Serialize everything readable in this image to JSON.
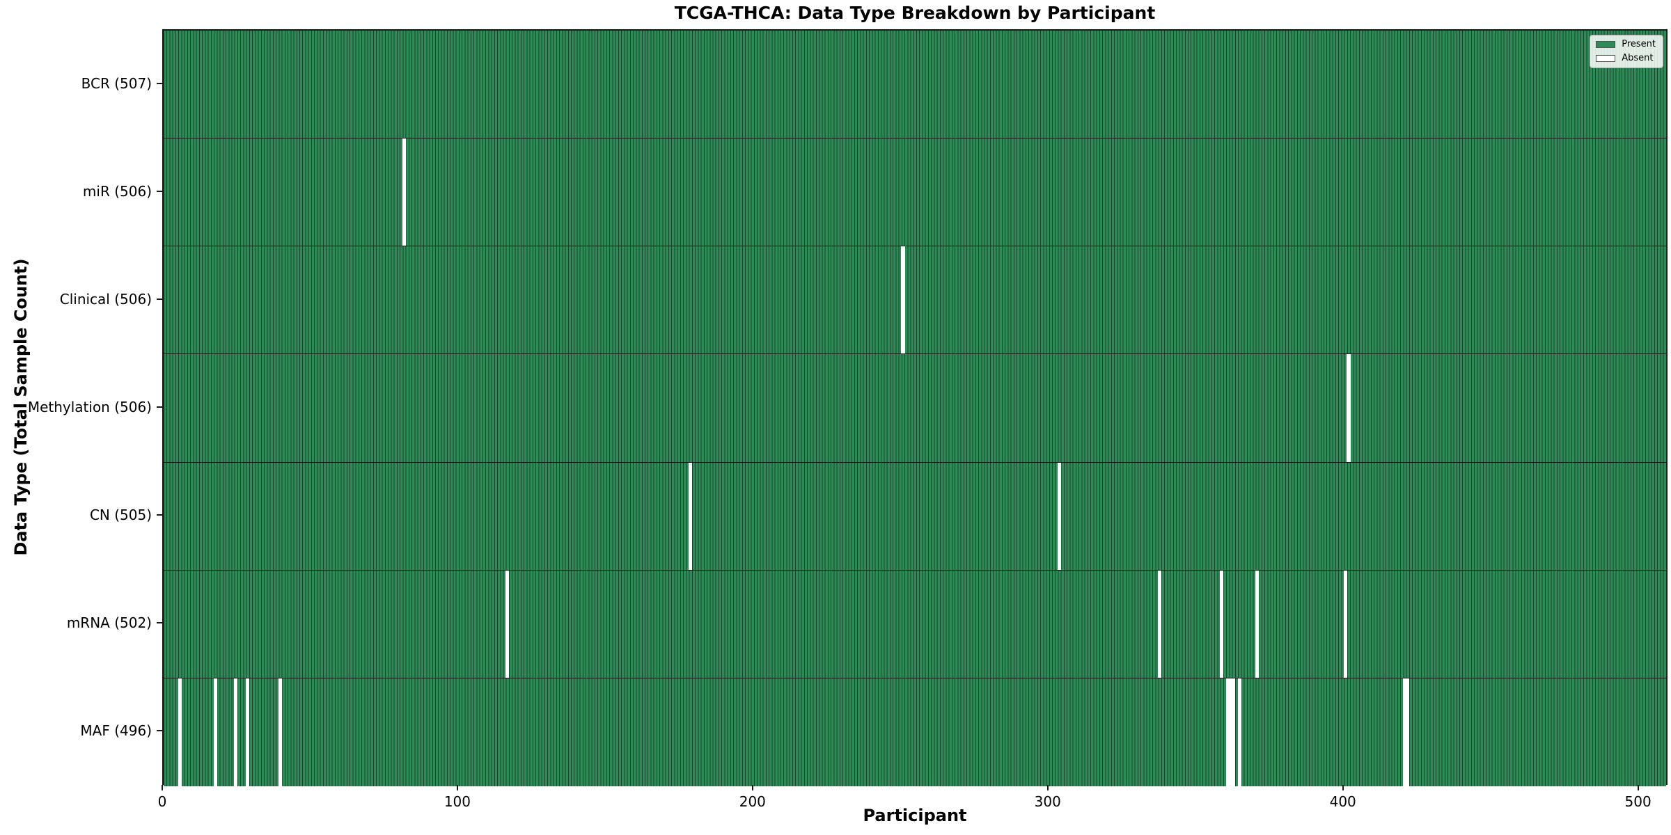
{
  "chart_data": {
    "type": "heatmap",
    "title": "TCGA-THCA: Data Type Breakdown by Participant",
    "xlabel": "Participant",
    "ylabel": "Data Type (Total Sample Count)",
    "x_ticks": [
      0,
      100,
      200,
      300,
      400,
      500
    ],
    "x_max": 510,
    "n_participants": 507,
    "grid": false,
    "colors": {
      "present": "#2e8b57",
      "absent": "#ffffff",
      "bar_edge": "#1c4e33"
    },
    "legend": {
      "position": "upper right",
      "items": [
        {
          "label": "Present",
          "color": "#2e8b57"
        },
        {
          "label": "Absent",
          "color": "#ffffff"
        }
      ]
    },
    "rows": [
      {
        "label": "BCR (507)",
        "data_type": "BCR",
        "total_samples": 507,
        "absent_participants": []
      },
      {
        "label": "miR (506)",
        "data_type": "miR",
        "total_samples": 506,
        "absent_participants": [
          81
        ]
      },
      {
        "label": "Clinical (506)",
        "data_type": "Clinical",
        "total_samples": 506,
        "absent_participants": [
          250
        ]
      },
      {
        "label": "Methylation (506)",
        "data_type": "Methylation",
        "total_samples": 506,
        "absent_participants": [
          401
        ]
      },
      {
        "label": "CN (505)",
        "data_type": "CN",
        "total_samples": 505,
        "absent_participants": [
          178,
          303
        ]
      },
      {
        "label": "mRNA (502)",
        "data_type": "mRNA",
        "total_samples": 502,
        "absent_participants": [
          116,
          337,
          358,
          370,
          400
        ]
      },
      {
        "label": "MAF (496)",
        "data_type": "MAF",
        "total_samples": 496,
        "absent_participants": [
          5,
          17,
          24,
          28,
          39,
          360,
          361,
          362,
          364,
          420,
          421
        ]
      }
    ]
  }
}
